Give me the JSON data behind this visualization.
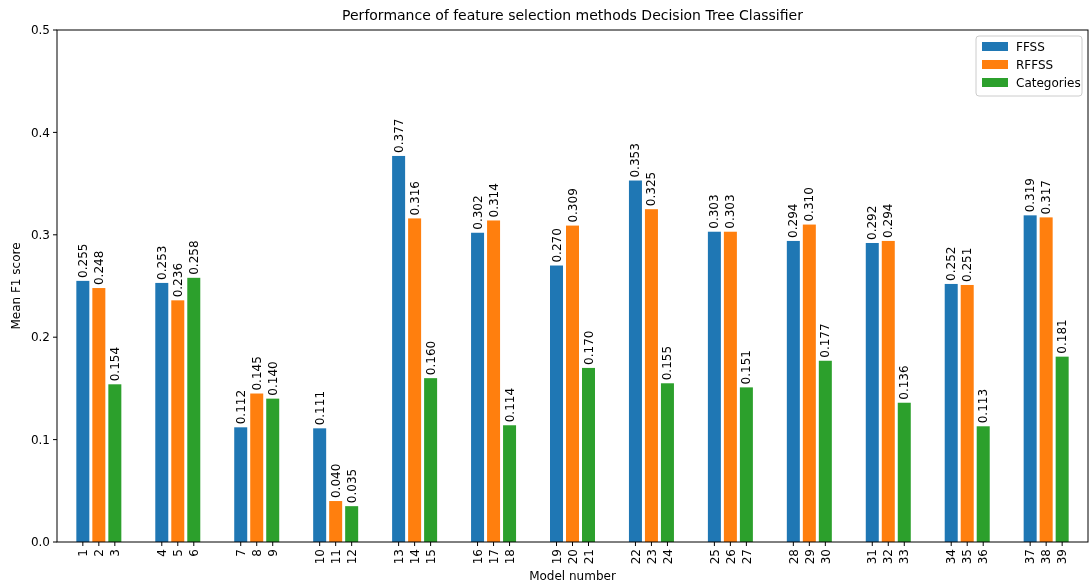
{
  "chart_data": {
    "type": "bar",
    "title": "Performance of feature selection methods Decision Tree Classifier",
    "xlabel": "Model number",
    "ylabel": "Mean F1 score",
    "categories": [
      "1",
      "2",
      "3",
      "4",
      "5",
      "6",
      "7",
      "8",
      "9",
      "10",
      "11",
      "12",
      "13",
      "14",
      "15",
      "16",
      "17",
      "18",
      "19",
      "20",
      "21",
      "22",
      "23",
      "24",
      "25",
      "26",
      "27",
      "28",
      "29",
      "30",
      "31",
      "32",
      "33",
      "34",
      "35",
      "36",
      "37",
      "38",
      "39"
    ],
    "series": [
      {
        "name": "FFSS",
        "color": "#1f77b4",
        "values": [
          0.255,
          null,
          null,
          0.253,
          null,
          null,
          0.112,
          null,
          null,
          0.111,
          null,
          null,
          0.377,
          null,
          null,
          0.302,
          null,
          null,
          0.27,
          null,
          null,
          0.353,
          null,
          null,
          0.303,
          null,
          null,
          0.294,
          null,
          null,
          0.292,
          null,
          null,
          0.252,
          null,
          null,
          0.319,
          null,
          null
        ],
        "value_labels": [
          "0.255",
          null,
          null,
          "0.253",
          null,
          null,
          "0.112",
          null,
          null,
          "0.111",
          null,
          null,
          "0.377",
          null,
          null,
          "0.302",
          null,
          null,
          "0.270",
          null,
          null,
          "0.353",
          null,
          null,
          "0.303",
          null,
          null,
          "0.294",
          null,
          null,
          "0.292",
          null,
          null,
          "0.252",
          null,
          null,
          "0.319",
          null,
          null
        ]
      },
      {
        "name": "RFFSS",
        "color": "#ff7f0e",
        "values": [
          null,
          0.248,
          null,
          null,
          0.236,
          null,
          null,
          0.145,
          null,
          null,
          0.04,
          null,
          null,
          0.316,
          null,
          null,
          0.314,
          null,
          null,
          0.309,
          null,
          null,
          0.325,
          null,
          null,
          0.303,
          null,
          null,
          0.31,
          null,
          null,
          0.294,
          null,
          null,
          0.251,
          null,
          null,
          0.317,
          null
        ],
        "value_labels": [
          null,
          "0.248",
          null,
          null,
          "0.236",
          null,
          null,
          "0.145",
          null,
          null,
          "0.040",
          null,
          null,
          "0.316",
          null,
          null,
          "0.314",
          null,
          null,
          "0.309",
          null,
          null,
          "0.325",
          null,
          null,
          "0.303",
          null,
          null,
          "0.310",
          null,
          null,
          "0.294",
          null,
          null,
          "0.251",
          null,
          null,
          "0.317",
          null
        ]
      },
      {
        "name": "Categories",
        "color": "#2ca02c",
        "values": [
          null,
          null,
          0.154,
          null,
          null,
          0.258,
          null,
          null,
          0.14,
          null,
          null,
          0.035,
          null,
          null,
          0.16,
          null,
          null,
          0.114,
          null,
          null,
          0.17,
          null,
          null,
          0.155,
          null,
          null,
          0.151,
          null,
          null,
          0.177,
          null,
          null,
          0.136,
          null,
          null,
          0.113,
          null,
          null,
          0.181
        ],
        "value_labels": [
          null,
          null,
          "0.154",
          null,
          null,
          "0.258",
          null,
          null,
          "0.140",
          null,
          null,
          "0.035",
          null,
          null,
          "0.160",
          null,
          null,
          "0.114",
          null,
          null,
          "0.170",
          null,
          null,
          "0.155",
          null,
          null,
          "0.151",
          null,
          null,
          "0.177",
          null,
          null,
          "0.136",
          null,
          null,
          "0.113",
          null,
          null,
          "0.181"
        ]
      }
    ],
    "ylim": [
      0,
      0.5
    ],
    "yticks": [
      {
        "value": 0,
        "label": "0.0"
      },
      {
        "value": 0.1,
        "label": "0.1"
      },
      {
        "value": 0.2,
        "label": "0.2"
      },
      {
        "value": 0.3,
        "label": "0.3"
      },
      {
        "value": 0.4,
        "label": "0.4"
      },
      {
        "value": 0.5,
        "label": "0.5"
      }
    ],
    "legend": "top right"
  }
}
